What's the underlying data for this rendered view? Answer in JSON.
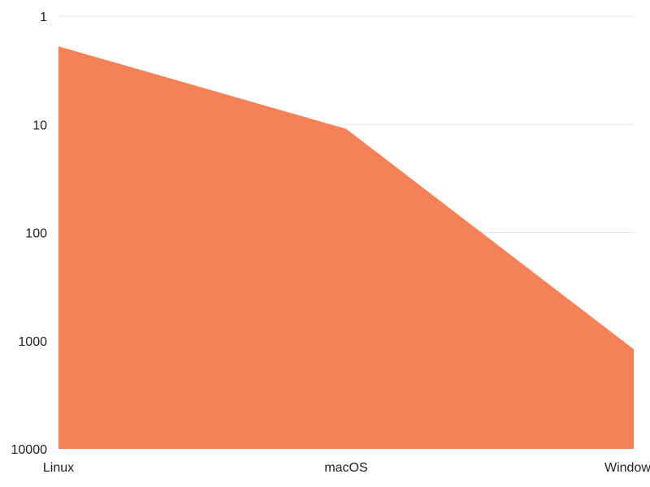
{
  "chart_data": {
    "type": "area",
    "categories": [
      "Linux",
      "macOS",
      "Windows"
    ],
    "series": [
      {
        "values": [
          1.9,
          11,
          1200
        ]
      }
    ],
    "y_scale": "log",
    "y_inverted": true,
    "ylim": [
      1,
      10000
    ],
    "y_ticks": [
      {
        "value": 1,
        "label": "1"
      },
      {
        "value": 10,
        "label": "10"
      },
      {
        "value": 100,
        "label": "100"
      },
      {
        "value": 1000,
        "label": "1000"
      },
      {
        "value": 10000,
        "label": "10000"
      }
    ],
    "grid": true,
    "legend": "none",
    "colors": {
      "area": "#f58159",
      "grid": "#e6e6e6",
      "text": "#222222"
    }
  }
}
